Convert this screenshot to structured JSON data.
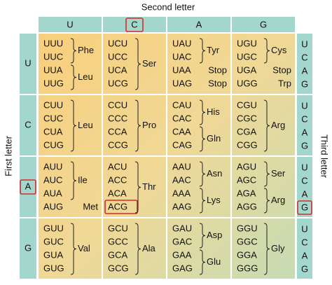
{
  "title_top": "Second letter",
  "title_left": "First letter",
  "title_right": "Third letter",
  "second_letters": [
    "U",
    "C",
    "A",
    "G"
  ],
  "rows": [
    {
      "first": "U",
      "third": [
        "U",
        "C",
        "A",
        "G"
      ],
      "cells": [
        [
          {
            "codons": [
              "UUU",
              "UUC"
            ],
            "amino": "Phe"
          },
          {
            "codons": [
              "UUA",
              "UUG"
            ],
            "amino": "Leu"
          }
        ],
        [
          {
            "codons": [
              "UCU",
              "UCC",
              "UCA",
              "UCG"
            ],
            "amino": "Ser"
          }
        ],
        [
          {
            "codons": [
              "UAU",
              "UAC"
            ],
            "amino": "Tyr"
          },
          {
            "codons": [
              "UAA"
            ],
            "amino": "Stop"
          },
          {
            "codons": [
              "UAG"
            ],
            "amino": "Stop"
          }
        ],
        [
          {
            "codons": [
              "UGU",
              "UGC"
            ],
            "amino": "Cys"
          },
          {
            "codons": [
              "UGA"
            ],
            "amino": "Stop"
          },
          {
            "codons": [
              "UGG"
            ],
            "amino": "Trp"
          }
        ]
      ]
    },
    {
      "first": "C",
      "third": [
        "U",
        "C",
        "A",
        "G"
      ],
      "cells": [
        [
          {
            "codons": [
              "CUU",
              "CUC",
              "CUA",
              "CUG"
            ],
            "amino": "Leu"
          }
        ],
        [
          {
            "codons": [
              "CCU",
              "CCC",
              "CCA",
              "CCG"
            ],
            "amino": "Pro"
          }
        ],
        [
          {
            "codons": [
              "CAU",
              "CAC"
            ],
            "amino": "His"
          },
          {
            "codons": [
              "CAA",
              "CAG"
            ],
            "amino": "Gln"
          }
        ],
        [
          {
            "codons": [
              "CGU",
              "CGC",
              "CGA",
              "CGG"
            ],
            "amino": "Arg"
          }
        ]
      ]
    },
    {
      "first": "A",
      "third": [
        "U",
        "C",
        "A",
        "G"
      ],
      "cells": [
        [
          {
            "codons": [
              "AUU",
              "AUC",
              "AUA"
            ],
            "amino": "Ile"
          },
          {
            "codons": [
              "AUG"
            ],
            "amino": "Met"
          }
        ],
        [
          {
            "codons": [
              "ACU",
              "ACC",
              "ACA",
              "ACG"
            ],
            "amino": "Thr"
          }
        ],
        [
          {
            "codons": [
              "AAU",
              "AAC"
            ],
            "amino": "Asn"
          },
          {
            "codons": [
              "AAA",
              "AAG"
            ],
            "amino": "Lys"
          }
        ],
        [
          {
            "codons": [
              "AGU",
              "AGC"
            ],
            "amino": "Ser"
          },
          {
            "codons": [
              "AGA",
              "AGG"
            ],
            "amino": "Arg"
          }
        ]
      ]
    },
    {
      "first": "G",
      "third": [
        "U",
        "C",
        "A",
        "G"
      ],
      "cells": [
        [
          {
            "codons": [
              "GUU",
              "GUC",
              "GUA",
              "GUG"
            ],
            "amino": "Val"
          }
        ],
        [
          {
            "codons": [
              "GCU",
              "GCC",
              "GCA",
              "GCG"
            ],
            "amino": "Ala"
          }
        ],
        [
          {
            "codons": [
              "GAU",
              "GAC"
            ],
            "amino": "Asp"
          },
          {
            "codons": [
              "GAA",
              "GAG"
            ],
            "amino": "Glu"
          }
        ],
        [
          {
            "codons": [
              "GGU",
              "GGC",
              "GGA",
              "GGG"
            ],
            "amino": "Gly"
          }
        ]
      ]
    }
  ]
}
